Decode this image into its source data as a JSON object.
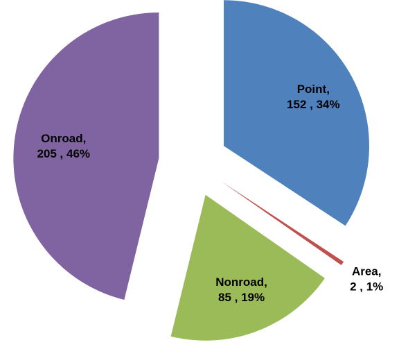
{
  "chart_data": {
    "type": "pie",
    "categories": [
      "Point,",
      "Area,",
      "Nonroad,",
      "Onroad,"
    ],
    "values": [
      152,
      2,
      85,
      205
    ],
    "value_labels": [
      "152 , 34%",
      "2 , 1%",
      "85 , 19%",
      "205 , 46%"
    ],
    "colors": [
      "#4f81bd",
      "#c0504d",
      "#9bbb59",
      "#8064a2"
    ]
  }
}
